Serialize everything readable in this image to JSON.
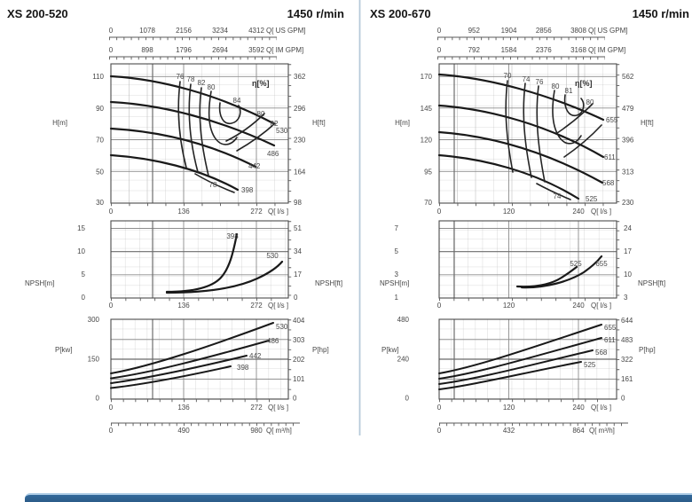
{
  "colors": {
    "accent_bar": "#2e6493",
    "accent_bar_highlight": "#aecde6",
    "panel_divider": "#b6cad9",
    "curve_ink": "#191919"
  },
  "chart_data": [
    {
      "pump": "XS 200-520",
      "speed": "1450 r/min",
      "flow_axes": {
        "us_gpm": {
          "ticks": [
            "0",
            "1078",
            "2156",
            "3234",
            "4312"
          ],
          "unit": "Q[ US GPM]"
        },
        "im_gpm": {
          "ticks": [
            "0",
            "898",
            "1796",
            "2694",
            "3592"
          ],
          "unit": "Q[ IM GPM]"
        },
        "lps": {
          "ticks": [
            "0",
            "136",
            "272"
          ],
          "unit": "Q[ l/s ]"
        },
        "m3h": {
          "ticks": [
            "0",
            "490",
            "980"
          ],
          "unit": "Q[ m³/h]"
        }
      },
      "head_chart": {
        "type": "line",
        "ylabel": "H[m]",
        "ylabel_right": "H[ft]",
        "yticks_m": [
          "110",
          "90",
          "70",
          "50",
          "30"
        ],
        "yticks_ft": [
          "362",
          "296",
          "230",
          "164",
          "98"
        ],
        "ylim_m": [
          30,
          118
        ],
        "xlim_lps": [
          0,
          330
        ],
        "eta_label": "η[%]",
        "eta_point_labels": [
          "76",
          "78",
          "82",
          "80",
          "84",
          "80",
          "82",
          "78"
        ],
        "impeller_labels": [
          "530",
          "486",
          "442",
          "398"
        ],
        "series": [
          {
            "name": "530",
            "q_lps": [
              0,
              136,
              272,
              303
            ],
            "h_m": [
              111,
              99,
              85,
              79
            ]
          },
          {
            "name": "486",
            "q_lps": [
              0,
              136,
              272,
              305
            ],
            "h_m": [
              93,
              84,
              70,
              65
            ]
          },
          {
            "name": "442",
            "q_lps": [
              0,
              136,
              250,
              270
            ],
            "h_m": [
              76,
              68,
              57,
              52
            ]
          },
          {
            "name": "398",
            "q_lps": [
              0,
              136,
              237
            ],
            "h_m": [
              59,
              52,
              40
            ]
          }
        ]
      },
      "npsh_chart": {
        "type": "line",
        "ylabel": "NPSH[m]",
        "ylabel_right": "NPSH[ft]",
        "yticks_m": [
          "15",
          "10",
          "5",
          "0"
        ],
        "yticks_ft": [
          "51",
          "34",
          "17",
          "0"
        ],
        "curve_labels": [
          "398",
          "530"
        ],
        "series": [
          {
            "name": "398",
            "q_lps": [
              105,
              160,
              210,
              240,
              255
            ],
            "npsh_m": [
              1.5,
              1.6,
              2.8,
              7,
              13.5
            ]
          },
          {
            "name": "530",
            "q_lps": [
              105,
              180,
              250,
              300,
              320
            ],
            "npsh_m": [
              1.4,
              1.8,
              3,
              5.5,
              8
            ]
          }
        ]
      },
      "power_chart": {
        "type": "line",
        "ylabel": "P[kw]",
        "ylabel_right": "P[hp]",
        "yticks_kw": [
          "300",
          "150",
          "0"
        ],
        "yticks_hp": [
          "404",
          "303",
          "202",
          "101",
          "0"
        ],
        "curve_labels": [
          "530",
          "486",
          "442",
          "398"
        ],
        "series": [
          {
            "name": "530",
            "q_lps": [
              0,
              136,
              272,
              300
            ],
            "p_kw": [
              90,
              165,
              255,
              280
            ]
          },
          {
            "name": "486",
            "q_lps": [
              0,
              136,
              272,
              295
            ],
            "p_kw": [
              78,
              142,
              205,
              212
            ]
          },
          {
            "name": "442",
            "q_lps": [
              0,
              136,
              250
            ],
            "p_kw": [
              68,
              120,
              156
            ]
          },
          {
            "name": "398",
            "q_lps": [
              0,
              136,
              220
            ],
            "p_kw": [
              58,
              100,
              118
            ]
          }
        ]
      }
    },
    {
      "pump": "XS 200-670",
      "speed": "1450 r/min",
      "flow_axes": {
        "us_gpm": {
          "ticks": [
            "0",
            "952",
            "1904",
            "2856",
            "3808"
          ],
          "unit": "Q[ US GPM]"
        },
        "im_gpm": {
          "ticks": [
            "0",
            "792",
            "1584",
            "2376",
            "3168"
          ],
          "unit": "Q[ IM GPM]"
        },
        "lps": {
          "ticks": [
            "0",
            "120",
            "240"
          ],
          "unit": "Q[ l/s ]"
        },
        "m3h": {
          "ticks": [
            "0",
            "432",
            "864"
          ],
          "unit": "Q[ m³/h]"
        }
      },
      "head_chart": {
        "type": "line",
        "ylabel": "H[m]",
        "ylabel_right": "H[ft]",
        "yticks_m": [
          "170",
          "145",
          "120",
          "95",
          "70"
        ],
        "yticks_ft": [
          "562",
          "479",
          "396",
          "313",
          "230"
        ],
        "ylim_m": [
          70,
          180
        ],
        "xlim_lps": [
          0,
          290
        ],
        "eta_label": "η[%]",
        "eta_point_labels": [
          "70",
          "74",
          "76",
          "80",
          "81",
          "80",
          "74"
        ],
        "impeller_labels": [
          "655",
          "611",
          "568",
          "525"
        ],
        "series": [
          {
            "name": "655",
            "q_lps": [
              0,
              120,
              240,
              280
            ],
            "h_m": [
              170,
              163,
              146,
              134
            ]
          },
          {
            "name": "611",
            "q_lps": [
              0,
              120,
              240,
              280
            ],
            "h_m": [
              145,
              138,
              120,
              104
            ]
          },
          {
            "name": "568",
            "q_lps": [
              0,
              120,
              240,
              275
            ],
            "h_m": [
              124,
              116,
              97,
              85
            ]
          },
          {
            "name": "525",
            "q_lps": [
              0,
              120,
              235
            ],
            "h_m": [
              105,
              97,
              71
            ]
          }
        ]
      },
      "npsh_chart": {
        "type": "line",
        "ylabel": "NPSH[m]",
        "ylabel_right": "NPSH[ft]",
        "yticks_m": [
          "7",
          "5",
          "3",
          "1"
        ],
        "yticks_ft": [
          "24",
          "17",
          "10",
          "3"
        ],
        "curve_labels": [
          "525",
          "655"
        ],
        "series": [
          {
            "name": "525",
            "q_lps": [
              135,
              180,
              220,
              235
            ],
            "npsh_m": [
              2.2,
              2.3,
              3.0,
              3.5
            ]
          },
          {
            "name": "655",
            "q_lps": [
              140,
              200,
              250,
              272
            ],
            "npsh_m": [
              2.2,
              2.4,
              3.4,
              4.6
            ]
          }
        ]
      },
      "power_chart": {
        "type": "line",
        "ylabel": "P[kw]",
        "ylabel_right": "P[hp]",
        "yticks_kw": [
          "480",
          "240",
          "0"
        ],
        "yticks_hp": [
          "644",
          "483",
          "322",
          "161",
          "0"
        ],
        "curve_labels": [
          "655",
          "611",
          "568",
          "525"
        ],
        "series": [
          {
            "name": "655",
            "q_lps": [
              0,
              120,
              240,
              278
            ],
            "p_kw": [
              135,
              245,
              385,
              415
            ]
          },
          {
            "name": "611",
            "q_lps": [
              0,
              120,
              240,
              278
            ],
            "p_kw": [
              110,
              205,
              320,
              350
            ]
          },
          {
            "name": "568",
            "q_lps": [
              0,
              120,
              240,
              270
            ],
            "p_kw": [
              80,
              170,
              260,
              278
            ]
          },
          {
            "name": "525",
            "q_lps": [
              0,
              120,
              240
            ],
            "p_kw": [
              60,
              140,
              200
            ]
          }
        ]
      }
    }
  ]
}
